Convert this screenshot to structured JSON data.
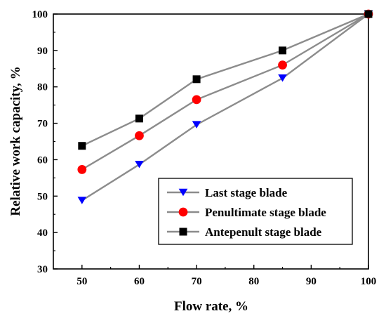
{
  "chart_data": {
    "type": "line",
    "title": "",
    "xlabel": "Flow rate, %",
    "ylabel": "Relative work capacity, %",
    "xlim": [
      45,
      100
    ],
    "ylim": [
      30,
      100
    ],
    "xticks": [
      50,
      60,
      70,
      80,
      90,
      100
    ],
    "yticks": [
      30,
      40,
      50,
      60,
      70,
      80,
      90,
      100
    ],
    "x": [
      50,
      60,
      70,
      85,
      100
    ],
    "grid": false,
    "legend_position": "bottom-right",
    "series": [
      {
        "name": "Last stage blade",
        "marker": "triangle-down",
        "marker_color": "#0000ff",
        "line_color": "#8c8c8c",
        "values": [
          48.8,
          58.7,
          69.6,
          82.4,
          100
        ]
      },
      {
        "name": "Penultimate stage blade",
        "marker": "circle",
        "marker_color": "#ff0000",
        "line_color": "#8c8c8c",
        "values": [
          57.3,
          66.6,
          76.5,
          86.0,
          100
        ]
      },
      {
        "name": "Antepenult stage blade",
        "marker": "square",
        "marker_color": "#000000",
        "line_color": "#8c8c8c",
        "values": [
          63.8,
          71.3,
          82.1,
          90.0,
          100
        ]
      }
    ]
  }
}
